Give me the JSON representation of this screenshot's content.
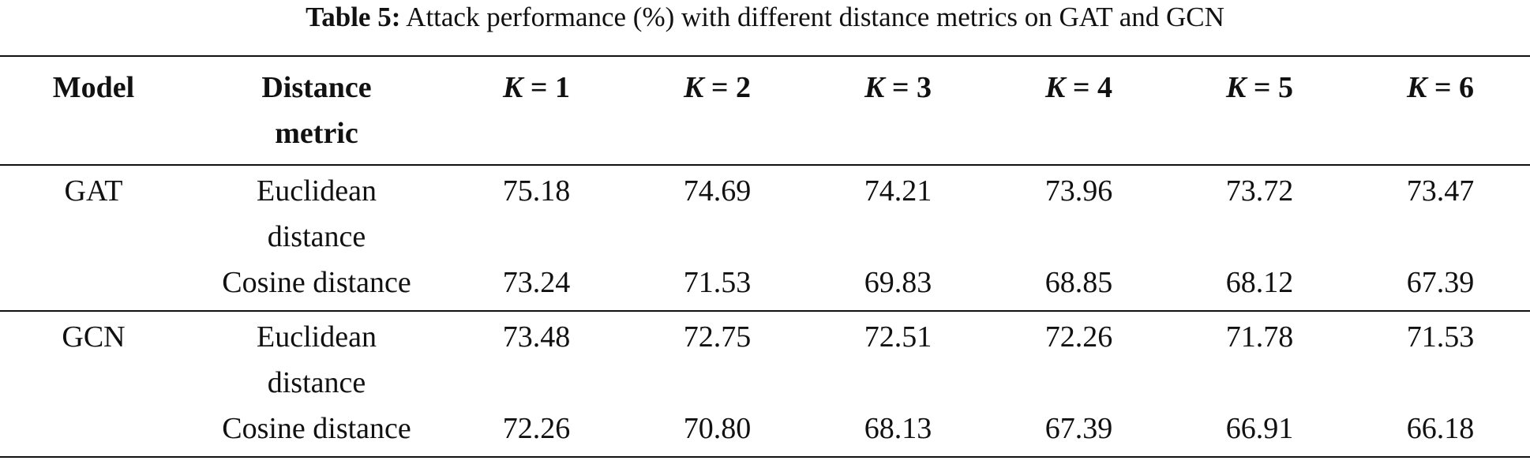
{
  "caption": {
    "label": "Table 5:",
    "text": " Attack performance (%) with different distance metrics on GAT and GCN"
  },
  "table": {
    "headers": {
      "model": "Model",
      "metric_line1": "Distance",
      "metric_line2": "metric",
      "k_symbol": "K",
      "k_values": [
        "= 1",
        "= 2",
        "= 3",
        "= 4",
        "= 5",
        "= 6"
      ]
    },
    "groups": [
      {
        "model": "GAT",
        "rows": [
          {
            "metric_line1": "Euclidean",
            "metric_line2": "distance",
            "values": [
              "75.18",
              "74.69",
              "74.21",
              "73.96",
              "73.72",
              "73.47"
            ]
          },
          {
            "metric_line1": "Cosine distance",
            "metric_line2": "",
            "values": [
              "73.24",
              "71.53",
              "69.83",
              "68.85",
              "68.12",
              "67.39"
            ]
          }
        ]
      },
      {
        "model": "GCN",
        "rows": [
          {
            "metric_line1": "Euclidean",
            "metric_line2": "distance",
            "values": [
              "73.48",
              "72.75",
              "72.51",
              "72.26",
              "71.78",
              "71.53"
            ]
          },
          {
            "metric_line1": "Cosine distance",
            "metric_line2": "",
            "values": [
              "72.26",
              "70.80",
              "68.13",
              "67.39",
              "66.91",
              "66.18"
            ]
          }
        ]
      }
    ]
  }
}
